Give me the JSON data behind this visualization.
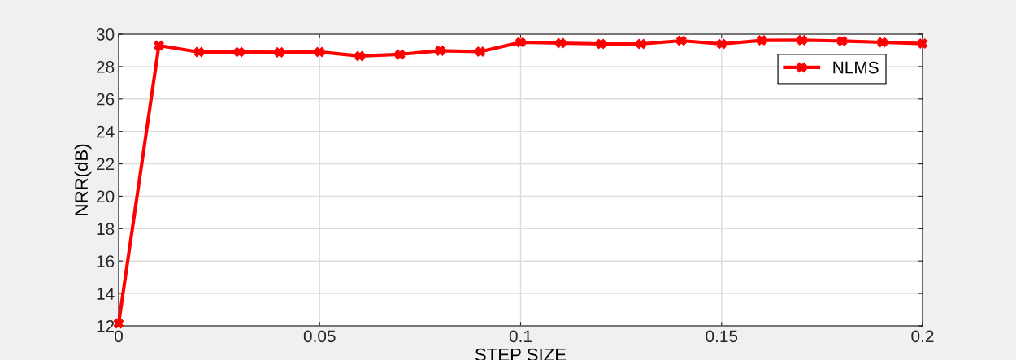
{
  "chart_data": {
    "type": "line",
    "xlabel": "STEP SIZE",
    "ylabel": "NRR(dB)",
    "x": [
      0,
      0.01,
      0.02,
      0.03,
      0.04,
      0.05,
      0.06,
      0.07,
      0.08,
      0.09,
      0.1,
      0.11,
      0.12,
      0.13,
      0.14,
      0.15,
      0.16,
      0.17,
      0.18,
      0.19,
      0.2
    ],
    "series": [
      {
        "name": "NLMS",
        "color": "#ff0000",
        "values": [
          12.15,
          29.3,
          28.9,
          28.9,
          28.88,
          28.9,
          28.65,
          28.75,
          28.98,
          28.92,
          29.5,
          29.45,
          29.4,
          29.4,
          29.6,
          29.4,
          29.62,
          29.63,
          29.58,
          29.5,
          29.42
        ]
      }
    ],
    "xlim": [
      0,
      0.2
    ],
    "xticks": [
      0,
      0.05,
      0.1,
      0.15,
      0.2
    ],
    "ylim": [
      12,
      30
    ],
    "yticks": [
      12,
      14,
      16,
      18,
      20,
      22,
      24,
      26,
      28,
      30
    ],
    "grid": true,
    "legend": "top right",
    "marker": "cross",
    "line_style": "solid"
  }
}
